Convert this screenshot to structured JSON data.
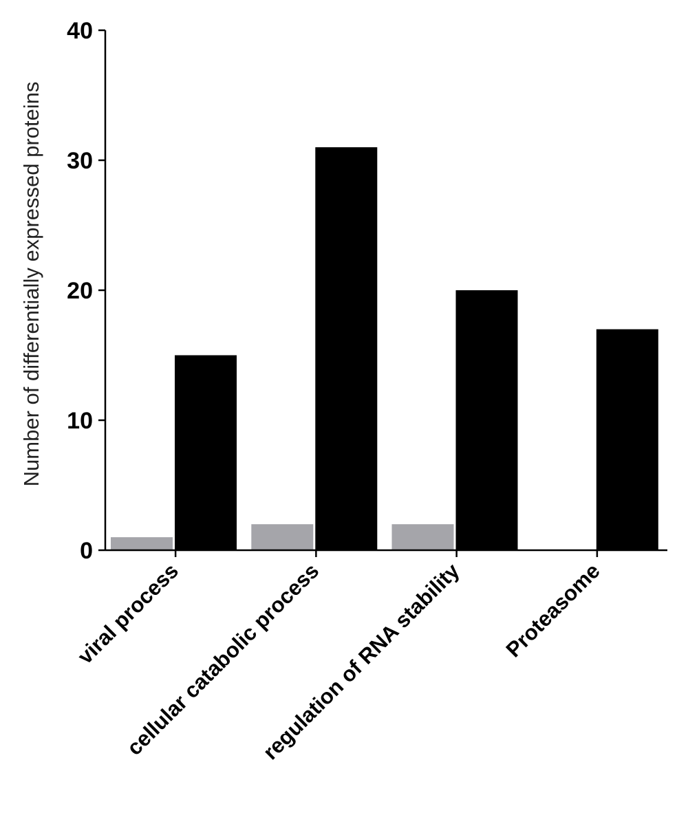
{
  "chart_data": {
    "type": "bar",
    "title": "",
    "xlabel": "",
    "ylabel": "Number of differentially expressed proteins",
    "categories": [
      "viral process",
      "cellular catabolic process",
      "regulation of RNA stability",
      "Proteasome"
    ],
    "series": [
      {
        "values": [
          1,
          2,
          2,
          0
        ],
        "color": "#a5a5aa"
      },
      {
        "values": [
          15,
          31,
          20,
          17
        ],
        "color": "#000000"
      }
    ],
    "ylim": [
      0,
      40
    ],
    "yticks": [
      0,
      10,
      20,
      30,
      40
    ],
    "grid": false,
    "legend": "none"
  }
}
